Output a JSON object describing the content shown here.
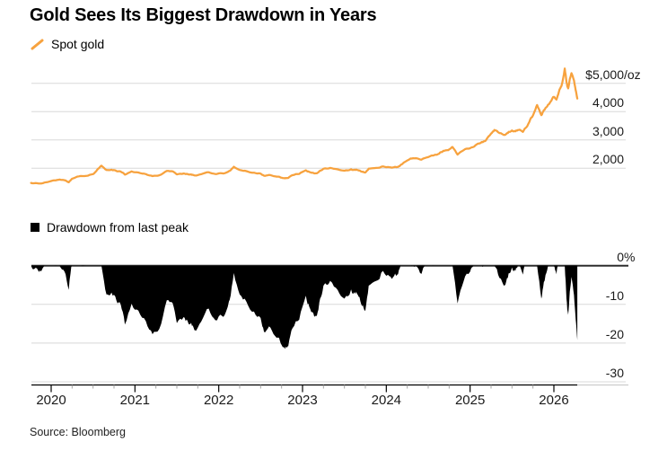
{
  "header": {
    "title": "Gold Sees Its Biggest Drawdown in Years"
  },
  "legends": {
    "price": {
      "label": "Spot gold"
    },
    "drawdown": {
      "label": "Drawdown from last peak"
    }
  },
  "source": "Source: Bloomberg",
  "colors": {
    "price": "#F7A23E",
    "drawdown": "#000000",
    "grid": "#D8D8D8",
    "zero_line": "#2E2E2E",
    "axis": "#000000",
    "axis_extension": "#CCCCCC",
    "minor_tick": "#A6A6A6",
    "text": "#1A1A1A"
  },
  "chart_data": [
    {
      "type": "line",
      "name": "Spot gold",
      "unit": "USD per troy ounce",
      "ylim": [
        1400,
        5600
      ],
      "xlim": [
        2019.76,
        2026.9
      ],
      "grid": true,
      "legend_position": "top-left",
      "yticks": [
        {
          "value": 5000,
          "num": "$5,000",
          "suffix": "/oz"
        },
        {
          "value": 4000,
          "num": "4,000",
          "suffix": ""
        },
        {
          "value": 3000,
          "num": "3,000",
          "suffix": ""
        },
        {
          "value": 2000,
          "num": "2,000",
          "suffix": ""
        }
      ],
      "xticks": [
        2020,
        2021,
        2022,
        2023,
        2024,
        2025,
        2026
      ],
      "points": [
        [
          2019.76,
          1480
        ],
        [
          2019.83,
          1470
        ],
        [
          2019.88,
          1458
        ],
        [
          2019.96,
          1512
        ],
        [
          2020.04,
          1570
        ],
        [
          2020.1,
          1600
        ],
        [
          2020.16,
          1575
        ],
        [
          2020.21,
          1500
        ],
        [
          2020.25,
          1630
        ],
        [
          2020.33,
          1712
        ],
        [
          2020.42,
          1728
        ],
        [
          2020.5,
          1790
        ],
        [
          2020.55,
          1945
        ],
        [
          2020.6,
          2090
        ],
        [
          2020.66,
          1935
        ],
        [
          2020.72,
          1945
        ],
        [
          2020.78,
          1900
        ],
        [
          2020.83,
          1880
        ],
        [
          2020.88,
          1772
        ],
        [
          2020.96,
          1885
        ],
        [
          2021.04,
          1848
        ],
        [
          2021.13,
          1790
        ],
        [
          2021.21,
          1720
        ],
        [
          2021.29,
          1748
        ],
        [
          2021.38,
          1903
        ],
        [
          2021.45,
          1888
        ],
        [
          2021.5,
          1780
        ],
        [
          2021.58,
          1812
        ],
        [
          2021.63,
          1790
        ],
        [
          2021.67,
          1782
        ],
        [
          2021.71,
          1742
        ],
        [
          2021.79,
          1788
        ],
        [
          2021.88,
          1858
        ],
        [
          2021.96,
          1795
        ],
        [
          2022.04,
          1818
        ],
        [
          2022.1,
          1858
        ],
        [
          2022.13,
          1905
        ],
        [
          2022.18,
          2050
        ],
        [
          2022.25,
          1935
        ],
        [
          2022.33,
          1895
        ],
        [
          2022.42,
          1842
        ],
        [
          2022.5,
          1808
        ],
        [
          2022.54,
          1732
        ],
        [
          2022.6,
          1762
        ],
        [
          2022.67,
          1712
        ],
        [
          2022.71,
          1702
        ],
        [
          2022.75,
          1662
        ],
        [
          2022.79,
          1640
        ],
        [
          2022.83,
          1655
        ],
        [
          2022.88,
          1752
        ],
        [
          2022.96,
          1798
        ],
        [
          2023.04,
          1928
        ],
        [
          2023.08,
          1868
        ],
        [
          2023.13,
          1832
        ],
        [
          2023.17,
          1818
        ],
        [
          2023.21,
          1912
        ],
        [
          2023.25,
          1982
        ],
        [
          2023.33,
          2008
        ],
        [
          2023.42,
          1958
        ],
        [
          2023.5,
          1912
        ],
        [
          2023.58,
          1962
        ],
        [
          2023.63,
          1938
        ],
        [
          2023.67,
          1922
        ],
        [
          2023.71,
          1872
        ],
        [
          2023.75,
          1848
        ],
        [
          2023.79,
          1982
        ],
        [
          2023.88,
          2008
        ],
        [
          2023.96,
          2062
        ],
        [
          2024.04,
          2032
        ],
        [
          2024.08,
          2028
        ],
        [
          2024.13,
          2042
        ],
        [
          2024.17,
          2110
        ],
        [
          2024.21,
          2200
        ],
        [
          2024.29,
          2342
        ],
        [
          2024.35,
          2352
        ],
        [
          2024.42,
          2302
        ],
        [
          2024.5,
          2392
        ],
        [
          2024.58,
          2472
        ],
        [
          2024.63,
          2512
        ],
        [
          2024.67,
          2582
        ],
        [
          2024.71,
          2632
        ],
        [
          2024.75,
          2662
        ],
        [
          2024.79,
          2748
        ],
        [
          2024.85,
          2480
        ],
        [
          2024.92,
          2632
        ],
        [
          2025.0,
          2705
        ],
        [
          2025.04,
          2752
        ],
        [
          2025.08,
          2842
        ],
        [
          2025.13,
          2902
        ],
        [
          2025.17,
          2952
        ],
        [
          2025.21,
          3082
        ],
        [
          2025.25,
          3222
        ],
        [
          2025.29,
          3348
        ],
        [
          2025.35,
          3242
        ],
        [
          2025.42,
          3182
        ],
        [
          2025.46,
          3282
        ],
        [
          2025.5,
          3332
        ],
        [
          2025.54,
          3302
        ],
        [
          2025.58,
          3352
        ],
        [
          2025.63,
          3282
        ],
        [
          2025.67,
          3442
        ],
        [
          2025.72,
          3742
        ],
        [
          2025.76,
          3932
        ],
        [
          2025.8,
          4232
        ],
        [
          2025.85,
          3872
        ],
        [
          2025.88,
          4052
        ],
        [
          2025.92,
          4182
        ],
        [
          2025.96,
          4352
        ],
        [
          2026.0,
          4522
        ],
        [
          2026.03,
          4422
        ],
        [
          2026.06,
          4702
        ],
        [
          2026.09,
          4902
        ],
        [
          2026.13,
          5520
        ],
        [
          2026.15,
          5050
        ],
        [
          2026.17,
          4820
        ],
        [
          2026.19,
          5150
        ],
        [
          2026.21,
          5360
        ],
        [
          2026.24,
          5100
        ],
        [
          2026.26,
          4750
        ],
        [
          2026.28,
          4460
        ]
      ]
    },
    {
      "type": "area",
      "name": "Drawdown from last peak",
      "unit": "percent below running peak",
      "derived_from_price_series": true,
      "ylim": [
        -33,
        0
      ],
      "xlim": [
        2019.76,
        2026.9
      ],
      "grid": true,
      "yticks": [
        {
          "value": 0,
          "num": "0",
          "suffix": "%"
        },
        {
          "value": -10,
          "num": "-10",
          "suffix": ""
        },
        {
          "value": -20,
          "num": "-20",
          "suffix": ""
        },
        {
          "value": -30,
          "num": "-30",
          "suffix": ""
        }
      ],
      "xticks": [
        2020,
        2021,
        2022,
        2023,
        2024,
        2025,
        2026
      ],
      "key_points": [
        [
          2020.21,
          -5
        ],
        [
          2020.6,
          0
        ],
        [
          2020.88,
          -15
        ],
        [
          2021.21,
          -17
        ],
        [
          2021.71,
          -16.5
        ],
        [
          2022.18,
          -2
        ],
        [
          2022.79,
          -21.5
        ],
        [
          2023.17,
          -12
        ],
        [
          2023.75,
          -11.5
        ],
        [
          2024.3,
          0
        ],
        [
          2024.85,
          -10
        ],
        [
          2025.42,
          -5
        ],
        [
          2025.85,
          -8.5
        ],
        [
          2026.13,
          0
        ],
        [
          2026.17,
          -13
        ],
        [
          2026.28,
          -19
        ]
      ]
    }
  ]
}
